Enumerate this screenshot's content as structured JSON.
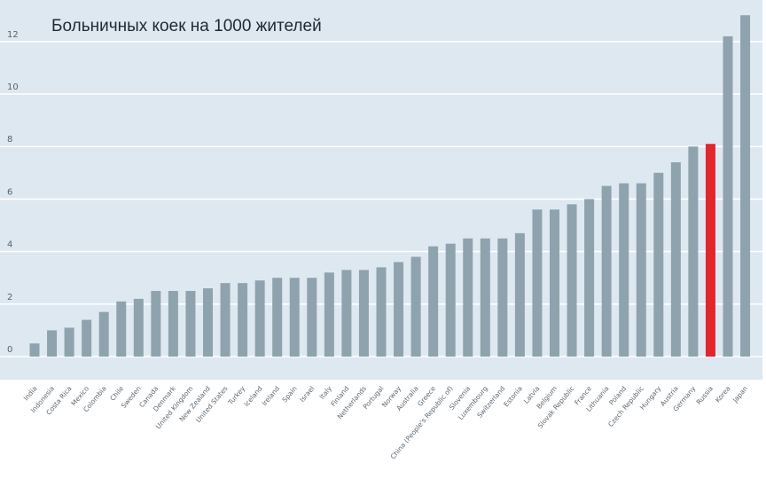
{
  "chart_data": {
    "type": "bar",
    "title": "Больничных коек на 1000 жителей",
    "xlabel": "",
    "ylabel": "",
    "ylim": [
      0,
      13.2
    ],
    "yticks": [
      0,
      2,
      4,
      6,
      8,
      10,
      12
    ],
    "grid": true,
    "legend": "none",
    "categories": [
      "India",
      "Indonesia",
      "Costa Rica",
      "Mexico",
      "Colombia",
      "Chile",
      "Sweden",
      "Canada",
      "Denmark",
      "United Kingdom",
      "New Zealand",
      "United States",
      "Turkey",
      "Iceland",
      "Ireland",
      "Spain",
      "Israel",
      "Italy",
      "Finland",
      "Netherlands",
      "Portugal",
      "Norway",
      "Australia",
      "Greece",
      "China (People's Republic of)",
      "Slovenia",
      "Luxembourg",
      "Switzerland",
      "Estonia",
      "Latvia",
      "Belgium",
      "Slovak Republic",
      "France",
      "Lithuania",
      "Poland",
      "Czech Republic",
      "Hungary",
      "Austria",
      "Germany",
      "Russia",
      "Korea",
      "Japan"
    ],
    "values": [
      0.5,
      1.0,
      1.1,
      1.4,
      1.7,
      2.1,
      2.2,
      2.5,
      2.5,
      2.5,
      2.6,
      2.8,
      2.8,
      2.9,
      3.0,
      3.0,
      3.0,
      3.2,
      3.3,
      3.3,
      3.4,
      3.6,
      3.8,
      4.2,
      4.3,
      4.5,
      4.5,
      4.5,
      4.7,
      5.6,
      5.6,
      5.8,
      6.0,
      6.5,
      6.6,
      6.6,
      7.0,
      7.4,
      8.0,
      8.1,
      12.2,
      13.0
    ],
    "highlight": "Russia",
    "colors": {
      "bar": "#8fa3ae",
      "highlight_bar": "#e1262d",
      "highlight_label": "#d63a3a",
      "plot_bg": "#dde8f0",
      "grid": "#ffffff"
    }
  }
}
